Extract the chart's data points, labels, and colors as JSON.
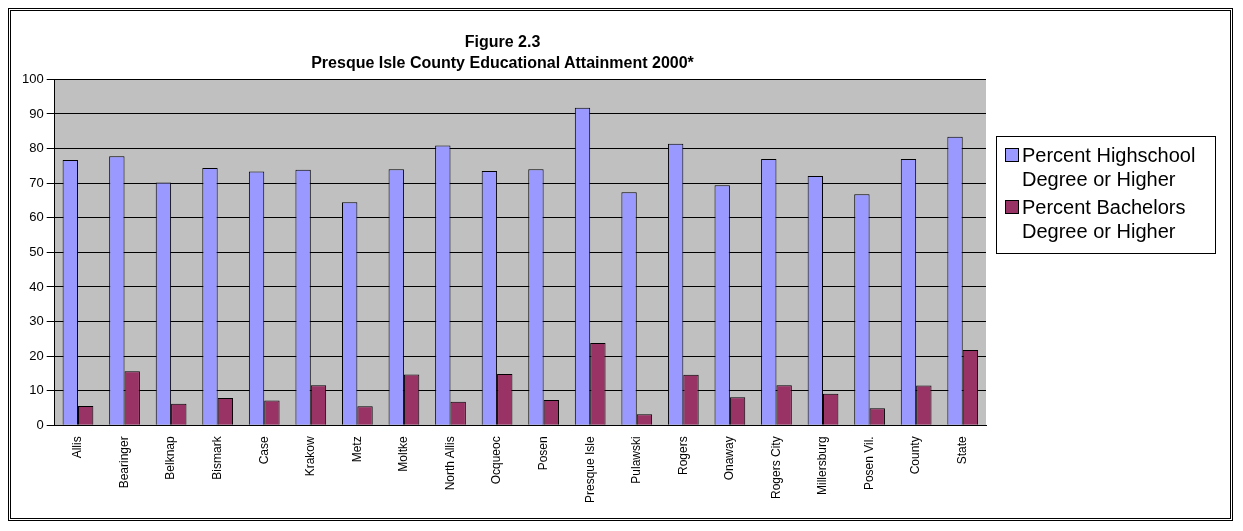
{
  "chart_data": {
    "type": "bar",
    "title": "Figure 2.3",
    "subtitle": "Presque Isle County Educational Attainment 2000*",
    "categories": [
      "Allis",
      "Bearinger",
      "Belknap",
      "Bismark",
      "Case",
      "Krakow",
      "Metz",
      "Moltke",
      "North Allis",
      "Ocqueoc",
      "Posen",
      "Presque Isle",
      "Pulawski",
      "Rogers",
      "Onaway",
      "Rogers City",
      "Millersburg",
      "Posen Vil.",
      "County",
      "State"
    ],
    "series": [
      {
        "name": "Percent Highschool Degree or Higher",
        "color": "#9999ff",
        "values": [
          76.7,
          77.8,
          70.2,
          74.4,
          73.4,
          73.9,
          64.5,
          74,
          80.9,
          73.5,
          74,
          91.8,
          67.4,
          81.4,
          69.4,
          77,
          72.1,
          66.8,
          77,
          83.4
        ]
      },
      {
        "name": "Percent Bachelors Degree or Higher",
        "color": "#993366",
        "values": [
          5.6,
          15.6,
          6.2,
          7.9,
          7.2,
          11.6,
          5.5,
          14.7,
          6.8,
          14.8,
          7.3,
          23.8,
          3.2,
          14.6,
          8.1,
          11.6,
          9.1,
          4.9,
          11.5,
          21.8
        ]
      }
    ],
    "ylim": [
      0,
      100
    ],
    "yticks": [
      0,
      10,
      20,
      30,
      40,
      50,
      60,
      70,
      80,
      90,
      100
    ],
    "grid": "y",
    "legend": "top right"
  }
}
